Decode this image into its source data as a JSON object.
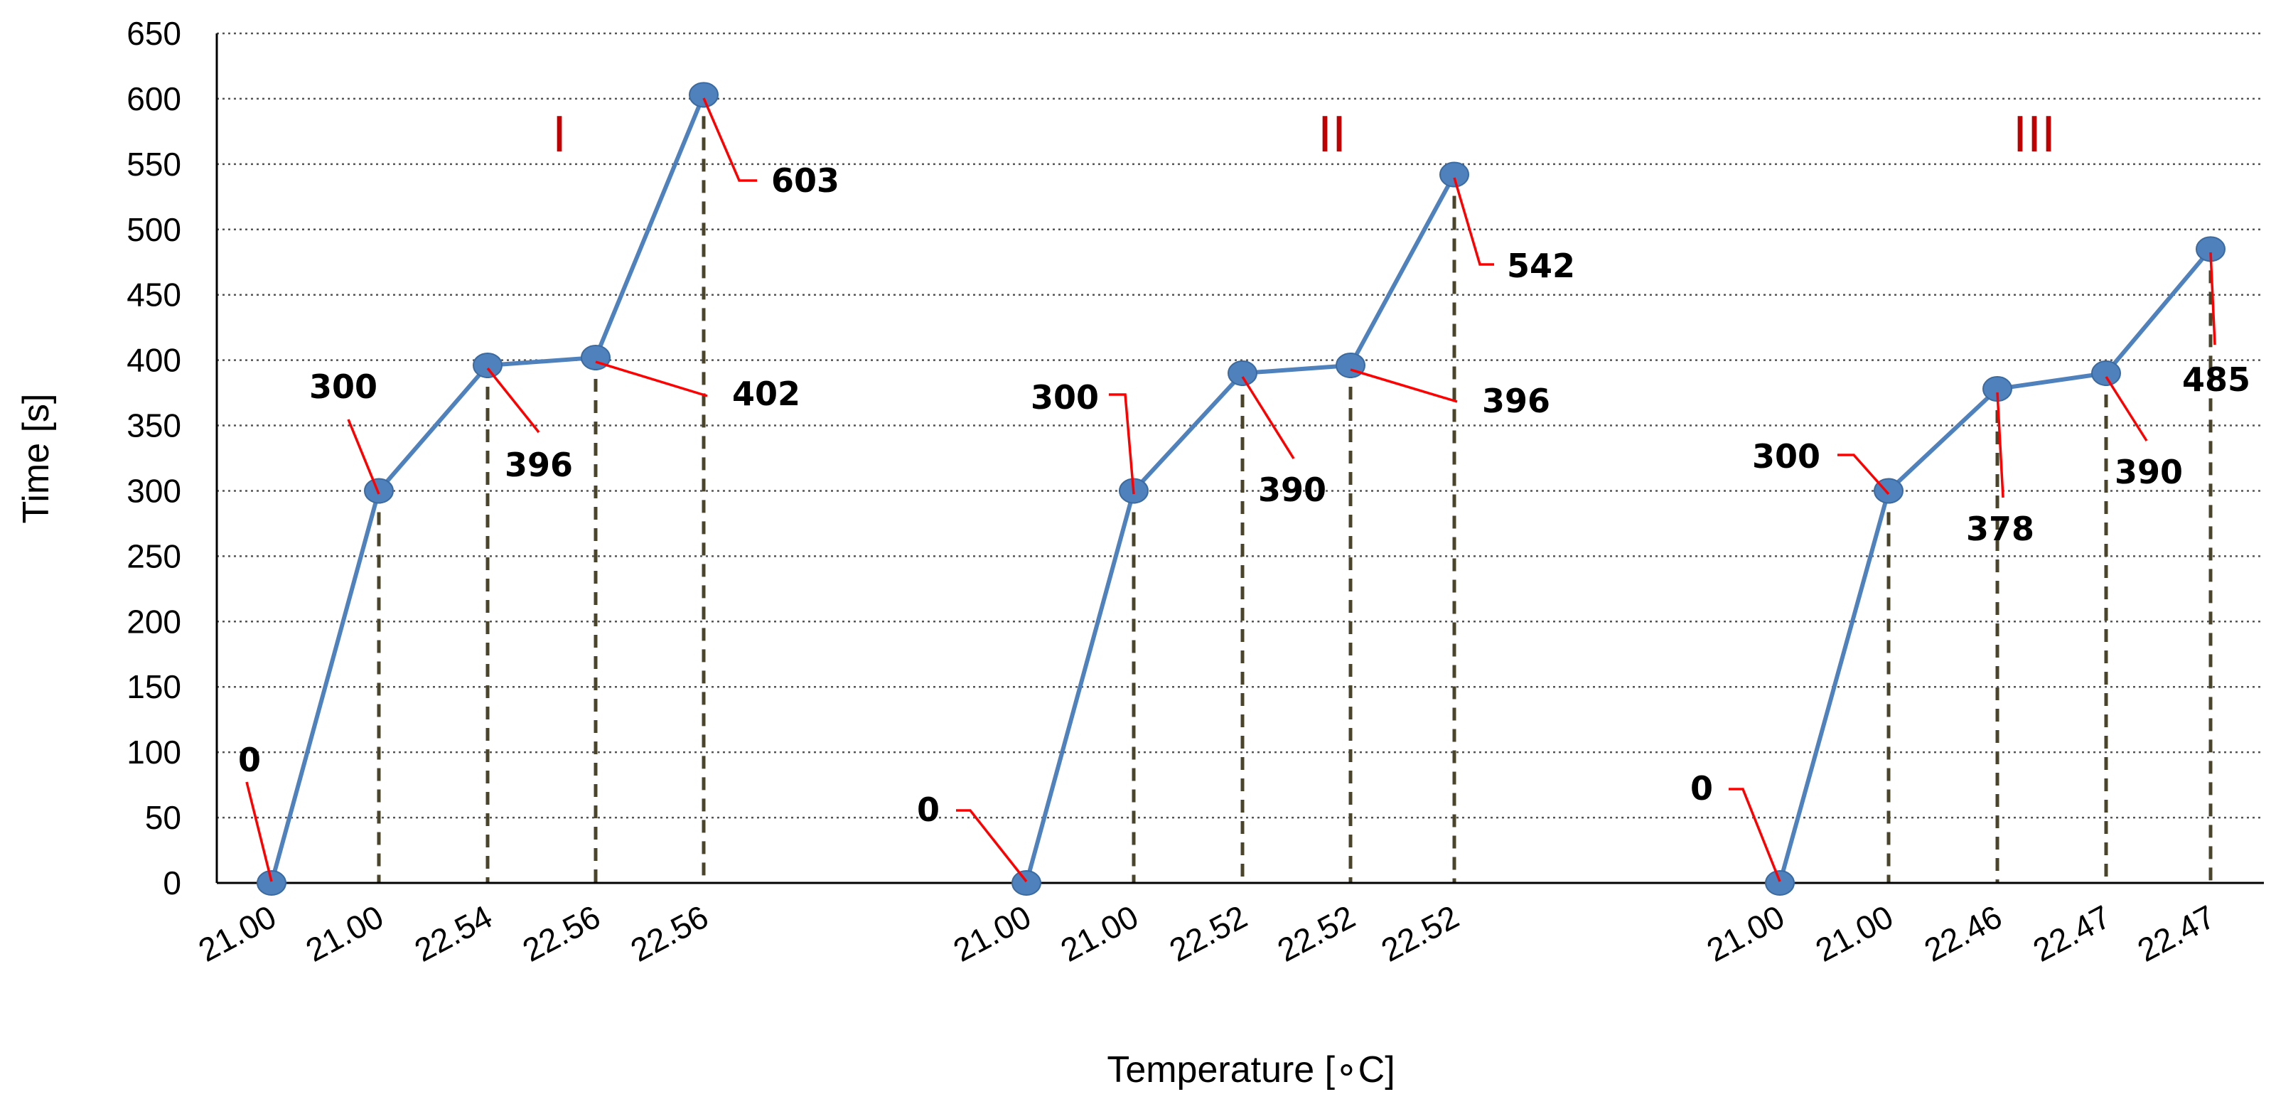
{
  "chart_data": {
    "type": "line",
    "title": "",
    "xlabel": "Temperature [∘C]",
    "ylabel": "Time [s]",
    "ylim": [
      0,
      650
    ],
    "yticks": [
      0,
      50,
      100,
      150,
      200,
      250,
      300,
      350,
      400,
      450,
      500,
      550,
      600,
      650
    ],
    "grid": "horizontal dotted",
    "legend": "none",
    "colors": {
      "line": "#4f81bd",
      "marker": "#4f81bd",
      "leader": "#ff0000",
      "group_label": "#c00000",
      "drop_line": "#4a452a"
    },
    "series": [
      {
        "name": "I",
        "temperatures": [
          "21.00",
          "21.00",
          "22.54",
          "22.56",
          "22.56"
        ],
        "values": [
          0,
          300,
          396,
          402,
          603
        ],
        "labels": [
          "0",
          "300",
          "396",
          "402",
          "603"
        ]
      },
      {
        "name": "II",
        "temperatures": [
          "21.00",
          "21.00",
          "22.52",
          "22.52",
          "22.52"
        ],
        "values": [
          0,
          300,
          390,
          396,
          542
        ],
        "labels": [
          "0",
          "300",
          "390",
          "396",
          "542"
        ]
      },
      {
        "name": "III",
        "temperatures": [
          "21.00",
          "21.00",
          "22.46",
          "22.47",
          "22.47"
        ],
        "values": [
          0,
          300,
          378,
          390,
          485
        ],
        "labels": [
          "0",
          "300",
          "378",
          "390",
          "485"
        ]
      }
    ]
  }
}
